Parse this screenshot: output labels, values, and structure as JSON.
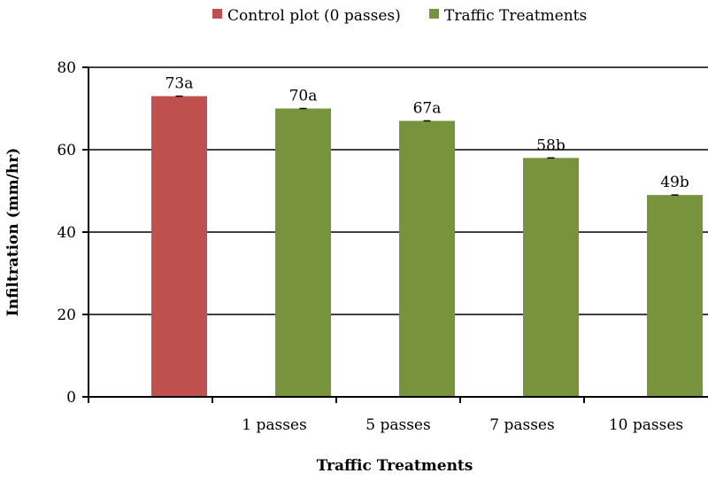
{
  "chart_data": {
    "type": "bar",
    "title": "",
    "xlabel": "Traffic Treatments",
    "ylabel": "Infiltration (mm/hr)",
    "ylim": [
      0,
      80
    ],
    "yticks": [
      0,
      20,
      40,
      60,
      80
    ],
    "grid": true,
    "legend_position": "top-center",
    "categories": [
      "",
      "1 passes",
      "5 passes",
      "7 passes",
      "10 passes"
    ],
    "series": [
      {
        "name": "Control plot (0 passes)",
        "color": "#C0504D",
        "values": [
          73,
          null,
          null,
          null,
          null
        ]
      },
      {
        "name": "Traffic Treatments",
        "color": "#77933C",
        "values": [
          null,
          70,
          67,
          58,
          49
        ]
      }
    ],
    "data_labels": [
      "73a",
      "70a",
      "67a",
      "58b",
      "49b"
    ]
  }
}
